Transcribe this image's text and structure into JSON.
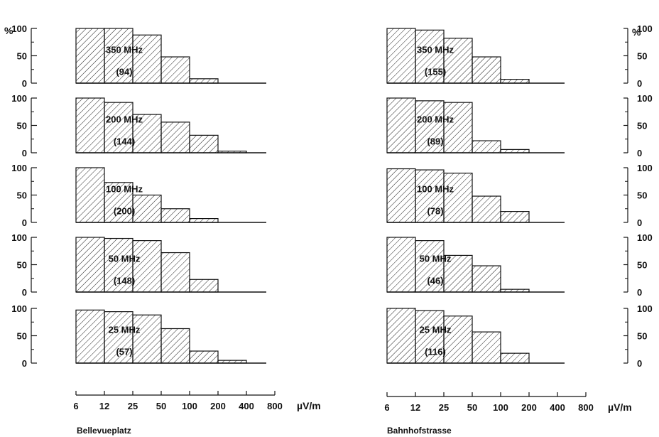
{
  "chart_data": [
    {
      "type": "bar",
      "title": "Bellevueplatz",
      "x_unit": "µV/m",
      "y_unit": "%",
      "x_ticks": [
        "6",
        "12",
        "25",
        "50",
        "100",
        "200",
        "400",
        "800"
      ],
      "y_ticks": [
        "0",
        "50",
        "100"
      ],
      "ylim": [
        0,
        100
      ],
      "bins": [
        "6-12",
        "12-25",
        "25-50",
        "50-100",
        "100-200",
        "200-400",
        "400-800"
      ],
      "panels": [
        {
          "label": "350 MHz",
          "count": "(94)",
          "values": [
            100,
            100,
            88,
            48,
            8,
            0,
            0
          ]
        },
        {
          "label": "200 MHz",
          "count": "(144)",
          "values": [
            100,
            92,
            70,
            56,
            32,
            3,
            0
          ]
        },
        {
          "label": "100 MHz",
          "count": "(200)",
          "values": [
            100,
            73,
            50,
            25,
            7,
            0,
            0
          ]
        },
        {
          "label": "50 MHz",
          "count": "(148)",
          "values": [
            100,
            98,
            94,
            72,
            23,
            0,
            0
          ]
        },
        {
          "label": "25 MHz",
          "count": "(57)",
          "values": [
            97,
            94,
            88,
            63,
            22,
            5,
            0
          ]
        }
      ]
    },
    {
      "type": "bar",
      "title": "Bahnhofstrasse",
      "x_unit": "µV/m",
      "y_unit": "%",
      "x_ticks": [
        "6",
        "12",
        "25",
        "50",
        "100",
        "200",
        "400",
        "800"
      ],
      "y_ticks": [
        "0",
        "50",
        "100"
      ],
      "ylim": [
        0,
        100
      ],
      "bins": [
        "6-12",
        "12-25",
        "25-50",
        "50-100",
        "100-200",
        "200-400",
        "400-800"
      ],
      "panels": [
        {
          "label": "350 MHz",
          "count": "(155)",
          "values": [
            100,
            97,
            82,
            48,
            7,
            0,
            0
          ]
        },
        {
          "label": "200 MHz",
          "count": "(89)",
          "values": [
            100,
            95,
            92,
            22,
            6,
            0,
            0
          ]
        },
        {
          "label": "100 MHz",
          "count": "(78)",
          "values": [
            98,
            96,
            90,
            48,
            20,
            0,
            0
          ]
        },
        {
          "label": "50 MHz",
          "count": "(46)",
          "values": [
            100,
            94,
            67,
            48,
            5,
            0,
            0
          ]
        },
        {
          "label": "25 MHz",
          "count": "(116)",
          "values": [
            100,
            96,
            86,
            57,
            18,
            0,
            0
          ]
        }
      ]
    }
  ],
  "labels": {
    "bellevue": "Bellevueplatz",
    "bahnhof": "Bahnhofstrasse",
    "unit_left": "µV/m",
    "unit_right": "µV/m",
    "pct_left": "%",
    "pct_right": "%"
  }
}
